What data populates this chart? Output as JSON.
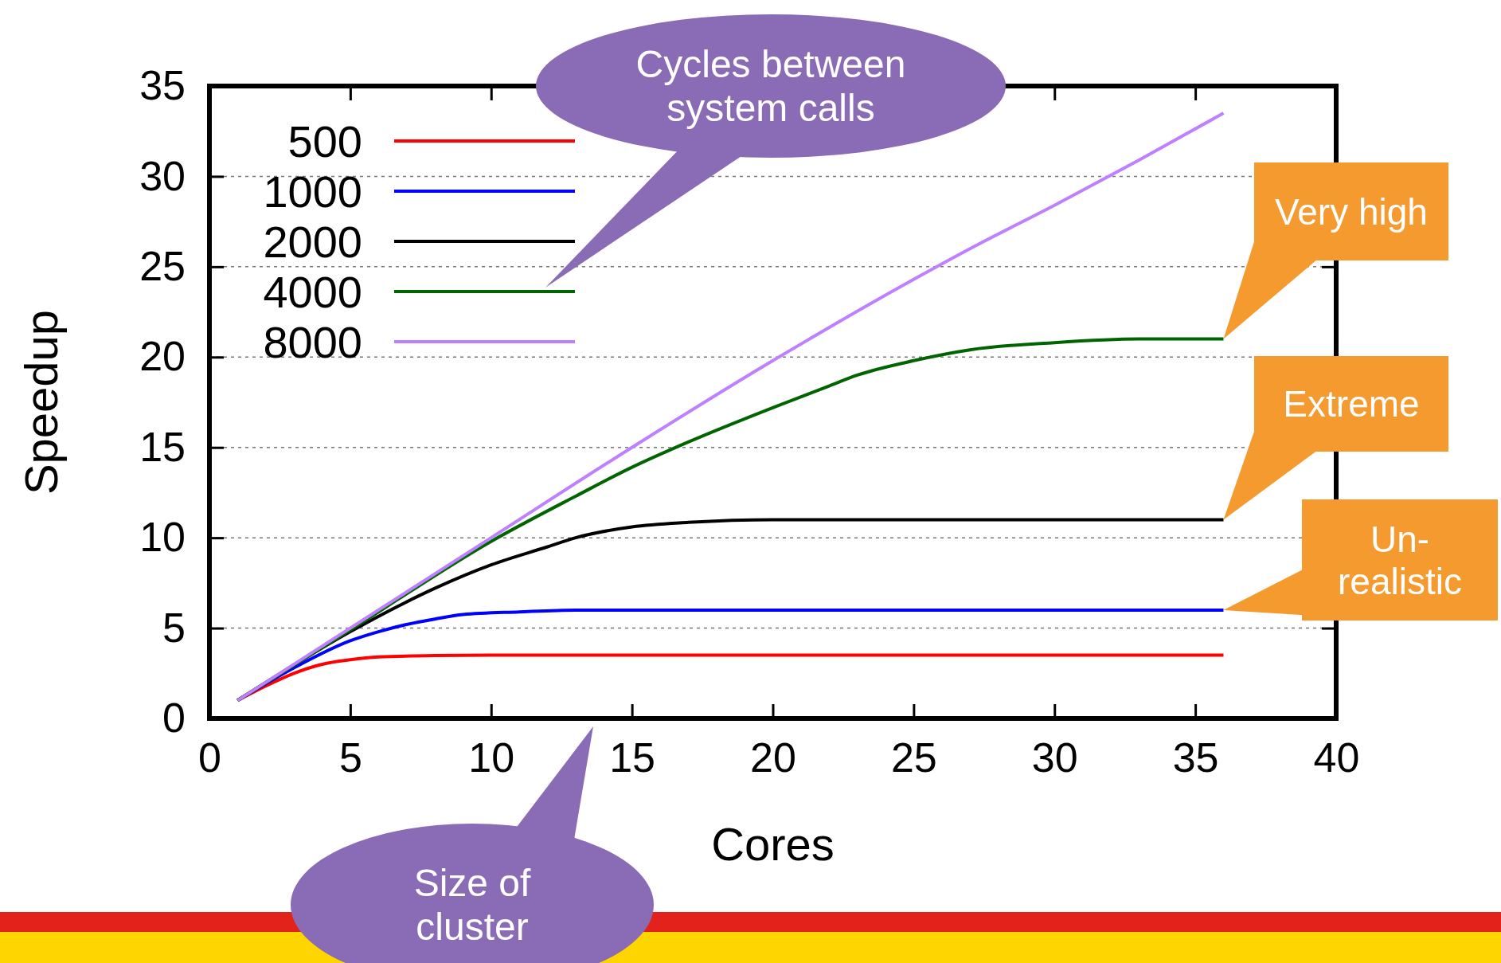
{
  "chart_data": {
    "type": "line",
    "xlabel": "Cores",
    "ylabel": "Speedup",
    "xlim": [
      0,
      40
    ],
    "xticks": [
      0,
      5,
      10,
      15,
      20,
      25,
      30,
      35,
      40
    ],
    "ylim": [
      0,
      35
    ],
    "yticks": [
      0,
      5,
      10,
      15,
      20,
      25,
      30,
      35
    ],
    "grid": "y",
    "legend": "top left",
    "marker": "none",
    "line_style": "solid",
    "series": [
      {
        "name": "500",
        "color": "#ff0000",
        "x": [
          1,
          2,
          3,
          4,
          5,
          6,
          8,
          10,
          36
        ],
        "values": [
          1,
          1.8,
          2.5,
          3.0,
          3.25,
          3.4,
          3.48,
          3.5,
          3.5
        ]
      },
      {
        "name": "1000",
        "color": "#0000ff",
        "x": [
          1,
          3,
          5,
          6,
          7,
          8,
          9,
          11,
          13,
          36
        ],
        "values": [
          1,
          2.8,
          4.3,
          4.8,
          5.2,
          5.5,
          5.75,
          5.9,
          6,
          6
        ]
      },
      {
        "name": "2000",
        "color": "#000000",
        "x": [
          1,
          5,
          8,
          10,
          12,
          13,
          15,
          17,
          20,
          36
        ],
        "values": [
          1,
          4.8,
          7.2,
          8.5,
          9.5,
          10,
          10.6,
          10.85,
          11,
          11
        ]
      },
      {
        "name": "4000",
        "color": "#006400",
        "x": [
          1,
          5,
          10,
          13,
          15,
          17,
          20,
          22,
          23,
          25,
          27,
          30,
          33,
          36
        ],
        "values": [
          1,
          4.9,
          9.8,
          12.3,
          13.9,
          15.3,
          17.2,
          18.4,
          19.0,
          19.8,
          20.4,
          20.8,
          21,
          21
        ]
      },
      {
        "name": "8000",
        "color": "#bf80ff",
        "x": [
          1,
          10,
          15,
          20,
          25,
          27,
          30,
          33,
          36
        ],
        "values": [
          1,
          10,
          15,
          19.8,
          24.3,
          26,
          28.4,
          30.9,
          33.5
        ]
      }
    ],
    "annotations": [
      "Cycles between system calls",
      "Size of cluster",
      "Very high",
      "Extreme",
      "Un-realistic"
    ]
  }
}
